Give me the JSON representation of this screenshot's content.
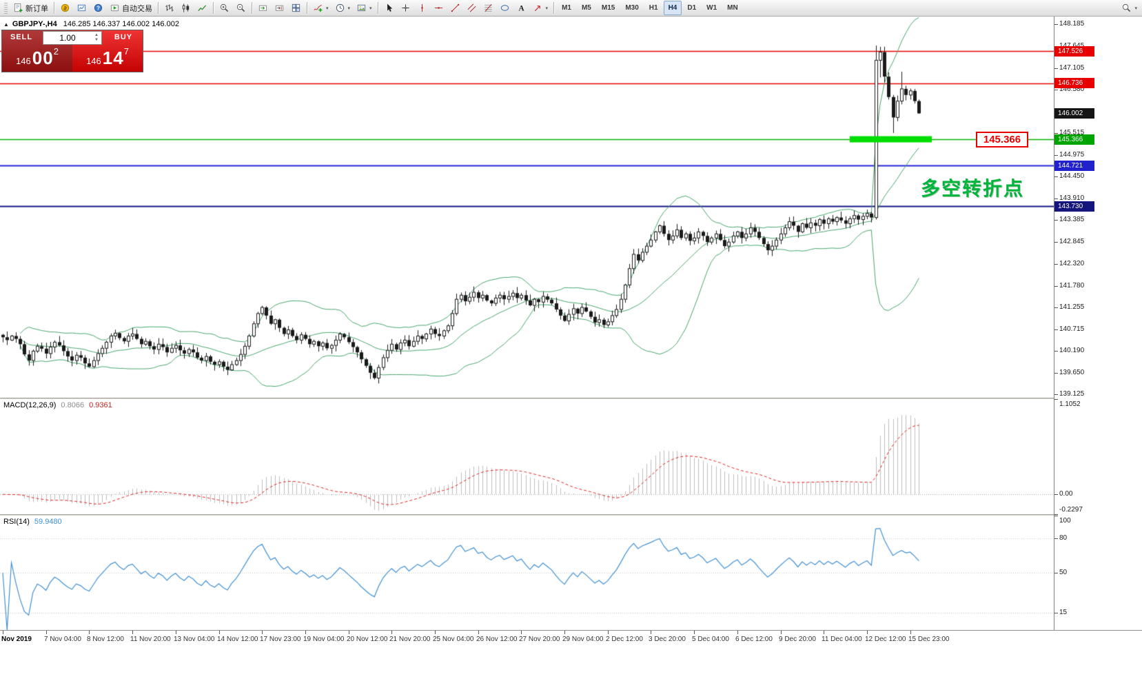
{
  "toolbar": {
    "active_timeframe": "H4",
    "groups": [
      {
        "name": "orders",
        "items": [
          {
            "icon": "new-order-icon",
            "label": "新订单",
            "name": "new-order-button"
          }
        ]
      },
      {
        "name": "terminal",
        "items": [
          {
            "icon": "market-icon",
            "name": "market-button"
          },
          {
            "icon": "charts-icon",
            "name": "charts-button"
          },
          {
            "icon": "help-icon",
            "name": "help-button"
          },
          {
            "icon": "autotrading-icon",
            "label": "自动交易",
            "name": "autotrading-button"
          }
        ]
      },
      {
        "name": "chart-type",
        "items": [
          {
            "icon": "bar-chart-icon",
            "name": "bar-chart-button"
          },
          {
            "icon": "candlestick-chart-icon",
            "name": "candlestick-chart-button"
          },
          {
            "icon": "line-chart-icon",
            "name": "line-chart-button"
          }
        ]
      },
      {
        "name": "zoom",
        "items": [
          {
            "icon": "zoom-in-icon",
            "name": "zoom-in-button"
          },
          {
            "icon": "zoom-out-icon",
            "name": "zoom-out-button"
          }
        ]
      },
      {
        "name": "layout",
        "items": [
          {
            "icon": "auto-scroll-icon",
            "name": "auto-scroll-button"
          },
          {
            "icon": "chart-shift-icon",
            "name": "chart-shift-button"
          },
          {
            "icon": "tile-windows-icon",
            "name": "tile-windows-button"
          }
        ]
      },
      {
        "name": "objects",
        "items": [
          {
            "icon": "indicators-icon",
            "name": "indicators-button",
            "caret": true
          },
          {
            "icon": "periods-icon",
            "name": "periods-button",
            "caret": true
          },
          {
            "icon": "templates-icon",
            "name": "templates-button",
            "caret": true
          }
        ]
      },
      {
        "name": "tools",
        "items": [
          {
            "icon": "cursor-icon",
            "name": "cursor-button"
          },
          {
            "icon": "crosshair-icon",
            "name": "crosshair-button"
          },
          {
            "icon": "vline-icon",
            "name": "vertical-line-button"
          },
          {
            "icon": "hline-icon",
            "name": "horizontal-line-button"
          },
          {
            "icon": "trendline-icon",
            "name": "trendline-button"
          },
          {
            "icon": "channel-icon",
            "name": "channel-button"
          },
          {
            "icon": "fibonacci-icon",
            "name": "fibonacci-button"
          },
          {
            "icon": "shapes-icon",
            "name": "shapes-button"
          },
          {
            "icon": "text-icon",
            "name": "text-button"
          },
          {
            "icon": "arrows-icon",
            "name": "arrows-button",
            "caret": true
          }
        ]
      },
      {
        "name": "timeframes",
        "items": [
          {
            "label": "M1",
            "name": "timeframe-m1"
          },
          {
            "label": "M5",
            "name": "timeframe-m5"
          },
          {
            "label": "M15",
            "name": "timeframe-m15"
          },
          {
            "label": "M30",
            "name": "timeframe-m30"
          },
          {
            "label": "H1",
            "name": "timeframe-h1"
          },
          {
            "label": "H4",
            "name": "timeframe-h4"
          },
          {
            "label": "D1",
            "name": "timeframe-d1"
          },
          {
            "label": "W1",
            "name": "timeframe-w1"
          },
          {
            "label": "MN",
            "name": "timeframe-mn"
          }
        ]
      }
    ],
    "right_items": [
      {
        "icon": "search-icon",
        "name": "search-button",
        "caret": true
      }
    ]
  },
  "header": {
    "symbol_period": "GBPJPY-,H4",
    "ohlc": "146.285 146.337 146.002 146.002"
  },
  "trade": {
    "sell_label": "SELL",
    "buy_label": "BUY",
    "volume": "1.00",
    "sell_price": {
      "main": "146",
      "pips": "00",
      "sup": "2"
    },
    "buy_price": {
      "main": "146",
      "pips": "14",
      "sup": "7"
    }
  },
  "annotation": {
    "text": "多空转折点",
    "color": "#00b43c",
    "level_label": "145.366",
    "level_label_color": "#e80000"
  },
  "indicators": {
    "macd": {
      "name": "MACD(12,26,9)",
      "v1": "0.8066",
      "v2": "0.9361"
    },
    "rsi": {
      "name": "RSI(14)",
      "value": "59.9480"
    }
  },
  "chart_data": {
    "type": "candlestick",
    "symbol": "GBPJPY",
    "period": "H4",
    "visible_price_range": [
      139.04,
      148.37
    ],
    "price_axis_labels": [
      "148.185",
      "147.645",
      "147.105",
      "146.580",
      "145.515",
      "144.975",
      "144.450",
      "143.910",
      "143.385",
      "142.845",
      "142.320",
      "141.780",
      "141.255",
      "140.715",
      "140.190",
      "139.650",
      "139.125"
    ],
    "price_tags": [
      {
        "text": "147.526",
        "color": "#e80000"
      },
      {
        "text": "146.736",
        "color": "#e80000"
      },
      {
        "text": "146.002",
        "color": "#151515"
      },
      {
        "text": "145.366",
        "color": "#00a400"
      },
      {
        "text": "144.721",
        "color": "#2222cc"
      },
      {
        "text": "143.730",
        "color": "#15157e"
      }
    ],
    "levels": [
      {
        "price": 147.526,
        "color": "#e80000",
        "width": 1.5
      },
      {
        "price": 146.736,
        "color": "#e80000",
        "width": 1.5
      },
      {
        "price": 145.366,
        "color": "#00b000",
        "width": 1.5,
        "highlight": {
          "from_index": 196,
          "to_index": 215,
          "thickness": 9,
          "color": "#00dd00"
        }
      },
      {
        "price": 144.721,
        "color": "#2424d8",
        "width": 2
      },
      {
        "price": 143.73,
        "color": "#141487",
        "width": 2
      }
    ],
    "time_axis_labels": [
      "Nov 2019",
      "7 Nov 04:00",
      "8 Nov 12:00",
      "11 Nov 20:00",
      "13 Nov 04:00",
      "14 Nov 12:00",
      "17 Nov 23:00",
      "19 Nov 04:00",
      "20 Nov 12:00",
      "21 Nov 20:00",
      "25 Nov 04:00",
      "26 Nov 12:00",
      "27 Nov 20:00",
      "29 Nov 04:00",
      "2 Dec 12:00",
      "3 Dec 20:00",
      "5 Dec 04:00",
      "6 Dec 12:00",
      "9 Dec 20:00",
      "11 Dec 04:00",
      "12 Dec 12:00",
      "15 Dec 23:00"
    ],
    "closes": [
      140.52,
      140.45,
      140.55,
      140.48,
      140.35,
      140.1,
      139.95,
      140.18,
      140.3,
      140.24,
      140.12,
      140.28,
      140.4,
      140.32,
      140.18,
      140.05,
      139.95,
      140.08,
      140.02,
      139.88,
      139.8,
      139.95,
      140.12,
      140.25,
      140.4,
      140.55,
      140.62,
      140.5,
      140.42,
      140.55,
      140.6,
      140.48,
      140.35,
      140.42,
      140.3,
      140.22,
      140.35,
      140.28,
      140.15,
      140.25,
      140.32,
      140.2,
      140.12,
      140.22,
      140.15,
      140.02,
      139.95,
      140.05,
      139.92,
      139.85,
      139.92,
      139.8,
      139.72,
      139.85,
      139.95,
      140.1,
      140.3,
      140.55,
      140.85,
      141.1,
      141.25,
      141.05,
      140.85,
      140.95,
      140.75,
      140.6,
      140.7,
      140.55,
      140.45,
      140.58,
      140.48,
      140.35,
      140.42,
      140.3,
      140.38,
      140.25,
      140.32,
      140.45,
      140.6,
      140.52,
      140.4,
      140.28,
      140.15,
      139.98,
      139.82,
      139.65,
      139.52,
      139.78,
      140.02,
      140.2,
      140.35,
      140.22,
      140.38,
      140.45,
      140.3,
      140.42,
      140.55,
      140.48,
      140.6,
      140.72,
      140.6,
      140.55,
      140.68,
      140.8,
      141.1,
      141.45,
      141.55,
      141.4,
      141.5,
      141.62,
      141.48,
      141.55,
      141.42,
      141.35,
      141.48,
      141.55,
      141.45,
      141.52,
      141.6,
      141.48,
      141.55,
      141.42,
      141.3,
      141.45,
      141.38,
      141.52,
      141.44,
      141.35,
      141.2,
      141.05,
      140.92,
      141.08,
      141.22,
      141.1,
      141.25,
      141.15,
      141.02,
      140.88,
      140.95,
      140.82,
      140.9,
      141.05,
      141.2,
      141.45,
      141.8,
      142.2,
      142.55,
      142.4,
      142.6,
      142.75,
      142.9,
      143.1,
      143.25,
      143.05,
      142.9,
      143.0,
      143.15,
      142.95,
      143.05,
      142.88,
      142.95,
      143.1,
      143.0,
      142.85,
      142.95,
      143.05,
      142.9,
      142.75,
      142.85,
      143.0,
      143.1,
      142.95,
      143.05,
      143.2,
      143.1,
      142.95,
      142.8,
      142.65,
      142.75,
      142.9,
      143.05,
      143.2,
      143.35,
      143.25,
      143.1,
      143.3,
      143.2,
      143.32,
      143.25,
      143.4,
      143.3,
      143.42,
      143.35,
      143.45,
      143.38,
      143.3,
      143.42,
      143.5,
      143.4,
      143.48,
      143.55,
      143.45,
      147.3,
      147.5,
      146.9,
      146.4,
      145.9,
      146.3,
      146.6,
      146.45,
      146.55,
      146.3,
      146.0
    ],
    "wick_overrides": {
      "202": [
        147.66,
        143.4
      ],
      "203": [
        147.63,
        146.88
      ],
      "206": [
        146.45,
        145.52
      ],
      "208": [
        147.02,
        146.22
      ],
      "212": [
        146.34,
        145.99
      ]
    },
    "bollinger": {
      "period": 20,
      "deviation": 2,
      "color": "#46a46a"
    },
    "macd_panel": {
      "scale_max": 1.1052,
      "scale_min": -0.2297,
      "axis_labels": [
        "1.1052",
        "0.00",
        "-0.2297"
      ],
      "histogram_color": "#bcbcbc",
      "signal_color": "#e02020"
    },
    "rsi_panel": {
      "period": 14,
      "axis_labels": [
        "100",
        "80",
        "50",
        "15"
      ],
      "levels": [
        80,
        50,
        15
      ],
      "line_color": "#3f8fd2"
    }
  }
}
